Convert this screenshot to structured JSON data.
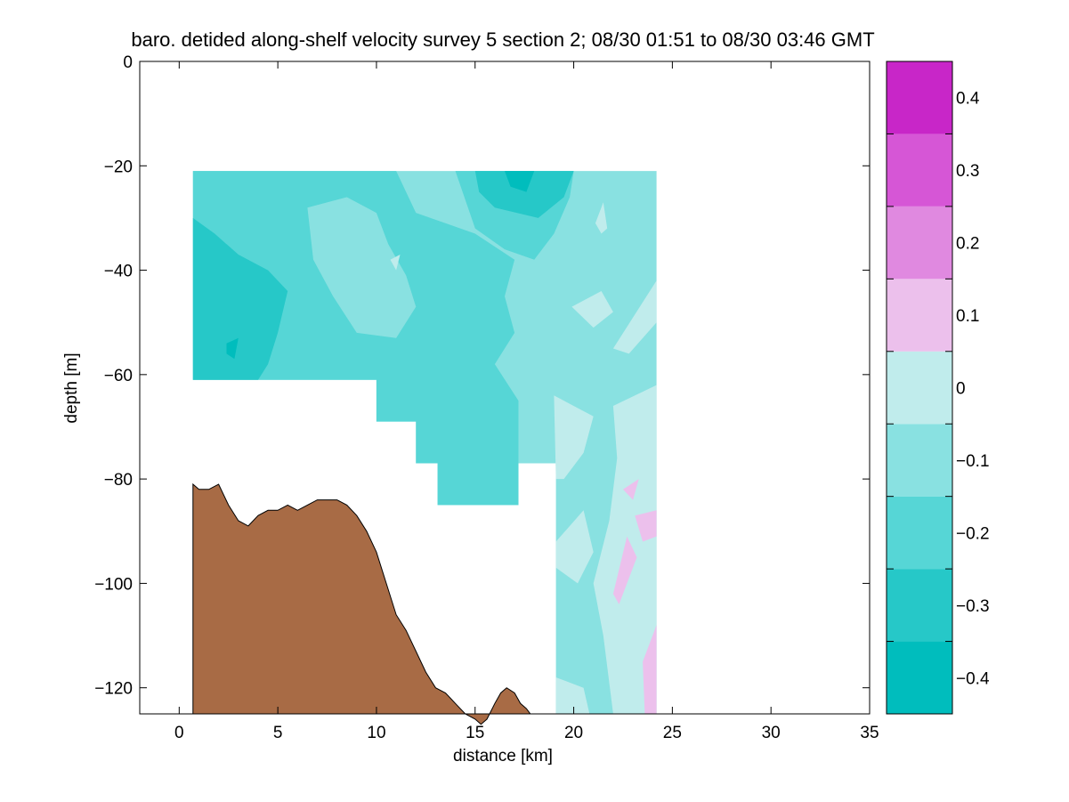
{
  "chart_data": {
    "type": "heatmap",
    "title": "baro. detided along-shelf velocity survey 5 section 2; 08/30 01:51 to 08/30 03:46 GMT",
    "xlabel": "distance [km]",
    "ylabel": "depth [m]",
    "xlim": [
      -2,
      35
    ],
    "ylim": [
      -125,
      0
    ],
    "xticks": [
      0,
      5,
      10,
      15,
      20,
      25,
      30,
      35
    ],
    "yticks": [
      0,
      -20,
      -40,
      -60,
      -80,
      -100,
      -120
    ],
    "colorbar": {
      "levels": [
        -0.45,
        -0.35,
        -0.25,
        -0.15,
        -0.05,
        0.05,
        0.15,
        0.25,
        0.35,
        0.45
      ],
      "colors": [
        "#00bdbd",
        "#26c8c8",
        "#56d6d6",
        "#89e1e1",
        "#c0ecec",
        "#ecc0ec",
        "#e089e0",
        "#d656d6",
        "#c826c8",
        "#bd00bd"
      ],
      "ticks": [
        -0.4,
        -0.3,
        -0.2,
        -0.1,
        0,
        0.1,
        0.2,
        0.3,
        0.4
      ],
      "tick_labels": [
        "−0.4",
        "−0.3",
        "−0.2",
        "−0.1",
        "0",
        "0.1",
        "0.2",
        "0.3",
        "0.4"
      ]
    },
    "bottom_profile": {
      "color": "#a86b45",
      "x": [
        0.7,
        1.0,
        1.5,
        2.0,
        2.5,
        3.0,
        3.5,
        4.0,
        4.5,
        5.0,
        5.5,
        6.0,
        6.5,
        7.0,
        7.5,
        8.0,
        8.5,
        9.0,
        9.5,
        10.0,
        10.5,
        11.0,
        11.5,
        12.0,
        12.5,
        13.0,
        13.5,
        14.0,
        14.5,
        15.0,
        15.3,
        15.6,
        16.0,
        16.3,
        16.6,
        17.0,
        17.3,
        17.6,
        17.8
      ],
      "y": [
        -81,
        -82,
        -82,
        -81,
        -85,
        -88,
        -89,
        -87,
        -86,
        -86,
        -85,
        -86,
        -85,
        -84,
        -84,
        -84,
        -85,
        -87,
        -90,
        -94,
        -100,
        -106,
        -109,
        -113,
        -117,
        -120,
        -121,
        -123,
        -125,
        -126,
        -127,
        -126,
        -123,
        -121,
        -120,
        -121,
        -123,
        -124,
        -125
      ]
    },
    "velocity_regions": [
      {
        "level": -0.05,
        "polygon": [
          [
            0.7,
            -21
          ],
          [
            24.2,
            -21
          ],
          [
            24.2,
            -125
          ],
          [
            19.1,
            -125
          ],
          [
            19.1,
            -77
          ],
          [
            17.2,
            -77
          ],
          [
            17.2,
            -85
          ],
          [
            13.1,
            -85
          ],
          [
            13.1,
            -77
          ],
          [
            12.0,
            -77
          ],
          [
            12.0,
            -69
          ],
          [
            10.0,
            -69
          ],
          [
            10.0,
            -61
          ],
          [
            0.7,
            -61
          ]
        ]
      },
      {
        "level": -0.15,
        "polygon": [
          [
            0.7,
            -21
          ],
          [
            11.0,
            -21
          ],
          [
            12.0,
            -29
          ],
          [
            15.0,
            -33
          ],
          [
            17.0,
            -38
          ],
          [
            16.5,
            -45
          ],
          [
            17.0,
            -52
          ],
          [
            16.0,
            -58
          ],
          [
            17.2,
            -65
          ],
          [
            17.2,
            -85
          ],
          [
            13.1,
            -85
          ],
          [
            13.1,
            -77
          ],
          [
            12.0,
            -77
          ],
          [
            12.0,
            -69
          ],
          [
            10.0,
            -69
          ],
          [
            10.0,
            -61
          ],
          [
            0.7,
            -61
          ]
        ]
      },
      {
        "level": -0.15,
        "polygon": [
          [
            14.0,
            -21
          ],
          [
            20.0,
            -21
          ],
          [
            19.8,
            -26
          ],
          [
            19.0,
            -33
          ],
          [
            18.0,
            -38
          ],
          [
            16.5,
            -36
          ],
          [
            15.0,
            -32
          ]
        ]
      },
      {
        "level": -0.05,
        "polygon": [
          [
            6.5,
            -28
          ],
          [
            8.5,
            -26
          ],
          [
            10.0,
            -29
          ],
          [
            10.6,
            -35
          ],
          [
            11.5,
            -41
          ],
          [
            12.0,
            -47
          ],
          [
            11.0,
            -53
          ],
          [
            9.0,
            -52
          ],
          [
            7.8,
            -45
          ],
          [
            6.8,
            -38
          ]
        ]
      },
      {
        "level": -0.25,
        "polygon": [
          [
            0.7,
            -30
          ],
          [
            1.8,
            -33
          ],
          [
            3.0,
            -37
          ],
          [
            4.5,
            -40
          ],
          [
            5.5,
            -44
          ],
          [
            5.0,
            -52
          ],
          [
            4.5,
            -58
          ],
          [
            4.0,
            -61
          ],
          [
            0.7,
            -61
          ]
        ]
      },
      {
        "level": -0.25,
        "polygon": [
          [
            15.0,
            -21
          ],
          [
            20.0,
            -21
          ],
          [
            19.5,
            -26
          ],
          [
            18.2,
            -30
          ],
          [
            16.0,
            -28
          ],
          [
            15.2,
            -25
          ]
        ]
      },
      {
        "level": -0.35,
        "polygon": [
          [
            16.5,
            -21
          ],
          [
            18.0,
            -21
          ],
          [
            17.6,
            -25
          ],
          [
            16.8,
            -24
          ]
        ]
      },
      {
        "level": -0.35,
        "polygon": [
          [
            2.4,
            -54
          ],
          [
            3.0,
            -53
          ],
          [
            2.8,
            -57
          ],
          [
            2.4,
            -56
          ]
        ]
      },
      {
        "level": 0.05,
        "polygon": [
          [
            19.0,
            -64
          ],
          [
            21.0,
            -68
          ],
          [
            20.5,
            -75
          ],
          [
            19.5,
            -80
          ],
          [
            19.1,
            -80
          ]
        ]
      },
      {
        "level": 0.05,
        "polygon": [
          [
            22.0,
            -66
          ],
          [
            24.2,
            -62
          ],
          [
            24.2,
            -125
          ],
          [
            22.0,
            -125
          ],
          [
            21.5,
            -110
          ],
          [
            21.0,
            -100
          ],
          [
            21.8,
            -88
          ],
          [
            22.2,
            -76
          ]
        ]
      },
      {
        "level": 0.05,
        "polygon": [
          [
            19.1,
            -92
          ],
          [
            20.5,
            -86
          ],
          [
            21.0,
            -94
          ],
          [
            20.2,
            -100
          ],
          [
            19.1,
            -97
          ]
        ]
      },
      {
        "level": 0.05,
        "polygon": [
          [
            19.1,
            -118
          ],
          [
            20.5,
            -120
          ],
          [
            20.8,
            -125
          ],
          [
            19.1,
            -125
          ]
        ]
      },
      {
        "level": 0.05,
        "polygon": [
          [
            19.9,
            -47
          ],
          [
            21.4,
            -44
          ],
          [
            22.0,
            -48
          ],
          [
            21.0,
            -51
          ]
        ]
      },
      {
        "level": 0.05,
        "polygon": [
          [
            22.0,
            -55
          ],
          [
            24.2,
            -42
          ],
          [
            24.2,
            -50
          ],
          [
            22.8,
            -56
          ]
        ]
      },
      {
        "level": 0.05,
        "polygon": [
          [
            21.1,
            -31
          ],
          [
            21.5,
            -27
          ],
          [
            21.7,
            -32
          ],
          [
            21.4,
            -33
          ]
        ]
      },
      {
        "level": 0.05,
        "polygon": [
          [
            10.7,
            -38
          ],
          [
            11.2,
            -37
          ],
          [
            11.0,
            -40
          ]
        ]
      },
      {
        "level": 0.15,
        "polygon": [
          [
            22.0,
            -102
          ],
          [
            22.7,
            -91
          ],
          [
            23.2,
            -95
          ],
          [
            22.3,
            -104
          ]
        ]
      },
      {
        "level": 0.15,
        "polygon": [
          [
            22.5,
            -82
          ],
          [
            23.3,
            -80
          ],
          [
            23.0,
            -84
          ]
        ]
      },
      {
        "level": 0.15,
        "polygon": [
          [
            23.5,
            -115
          ],
          [
            24.2,
            -108
          ],
          [
            24.2,
            -125
          ],
          [
            23.6,
            -125
          ]
        ]
      },
      {
        "level": 0.15,
        "polygon": [
          [
            23.1,
            -87
          ],
          [
            24.2,
            -86
          ],
          [
            24.2,
            -91
          ],
          [
            23.5,
            -92
          ]
        ]
      }
    ]
  }
}
